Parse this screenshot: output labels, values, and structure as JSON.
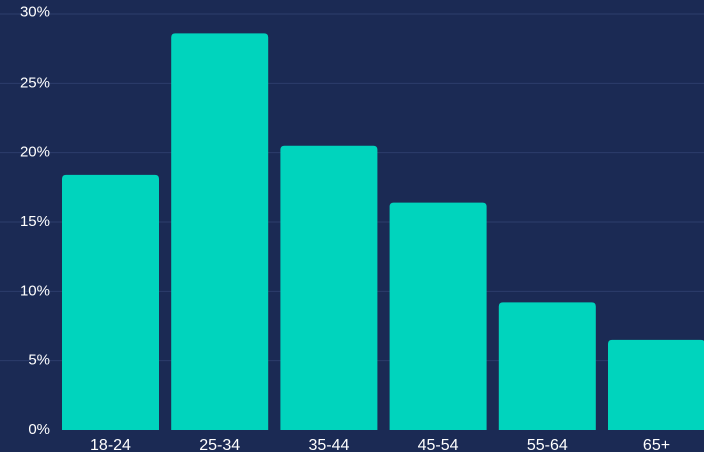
{
  "chart_data": {
    "type": "bar",
    "categories": [
      "18-24",
      "25-34",
      "35-44",
      "45-54",
      "55-64",
      "65+"
    ],
    "values": [
      18.4,
      28.6,
      20.5,
      16.4,
      9.2,
      6.5
    ],
    "y_ticks": [
      "0%",
      "5%",
      "10%",
      "15%",
      "20%",
      "25%",
      "30%"
    ],
    "ylim": [
      0,
      30
    ],
    "grid": true,
    "title": "",
    "xlabel": "",
    "ylabel": "",
    "colors": {
      "background": "#1b2a54",
      "bar": "#00d4bd",
      "grid": "#2c3d6b",
      "text": "#ffffff"
    }
  }
}
